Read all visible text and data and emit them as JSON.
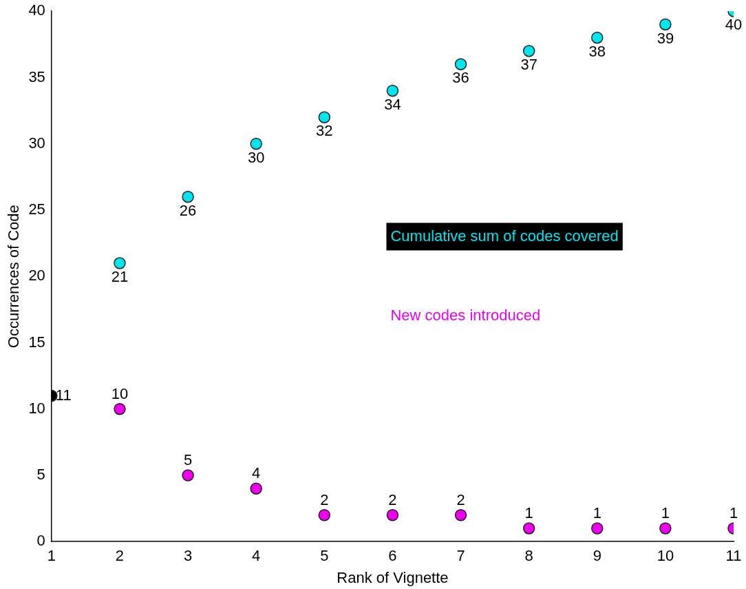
{
  "chart_data": {
    "type": "scatter",
    "xlabel": "Rank of Vignette",
    "ylabel": "Occurrences of Code",
    "xlim": [
      1,
      11
    ],
    "xticks": [
      1,
      2,
      3,
      4,
      5,
      6,
      7,
      8,
      9,
      10,
      11
    ],
    "ylim": [
      0,
      40
    ],
    "yticks": [
      0,
      5,
      10,
      15,
      20,
      25,
      30,
      35,
      40
    ],
    "grid": false,
    "legend": false,
    "marker": "circle",
    "data_labels": true,
    "series": [
      {
        "name": "Cumulative sum of codes covered",
        "color": "#00e5ee",
        "x": [
          2,
          3,
          4,
          5,
          6,
          7,
          8,
          9,
          10,
          11
        ],
        "values": [
          21,
          26,
          30,
          32,
          34,
          36,
          37,
          38,
          39,
          40
        ]
      },
      {
        "name": "New codes introduced",
        "color": "#ee00ee",
        "x": [
          2,
          3,
          4,
          5,
          6,
          7,
          8,
          9,
          10,
          11
        ],
        "values": [
          10,
          5,
          4,
          2,
          2,
          2,
          1,
          1,
          1,
          1
        ]
      },
      {
        "color": "#000000",
        "x": [
          1
        ],
        "values": [
          11
        ]
      }
    ]
  }
}
